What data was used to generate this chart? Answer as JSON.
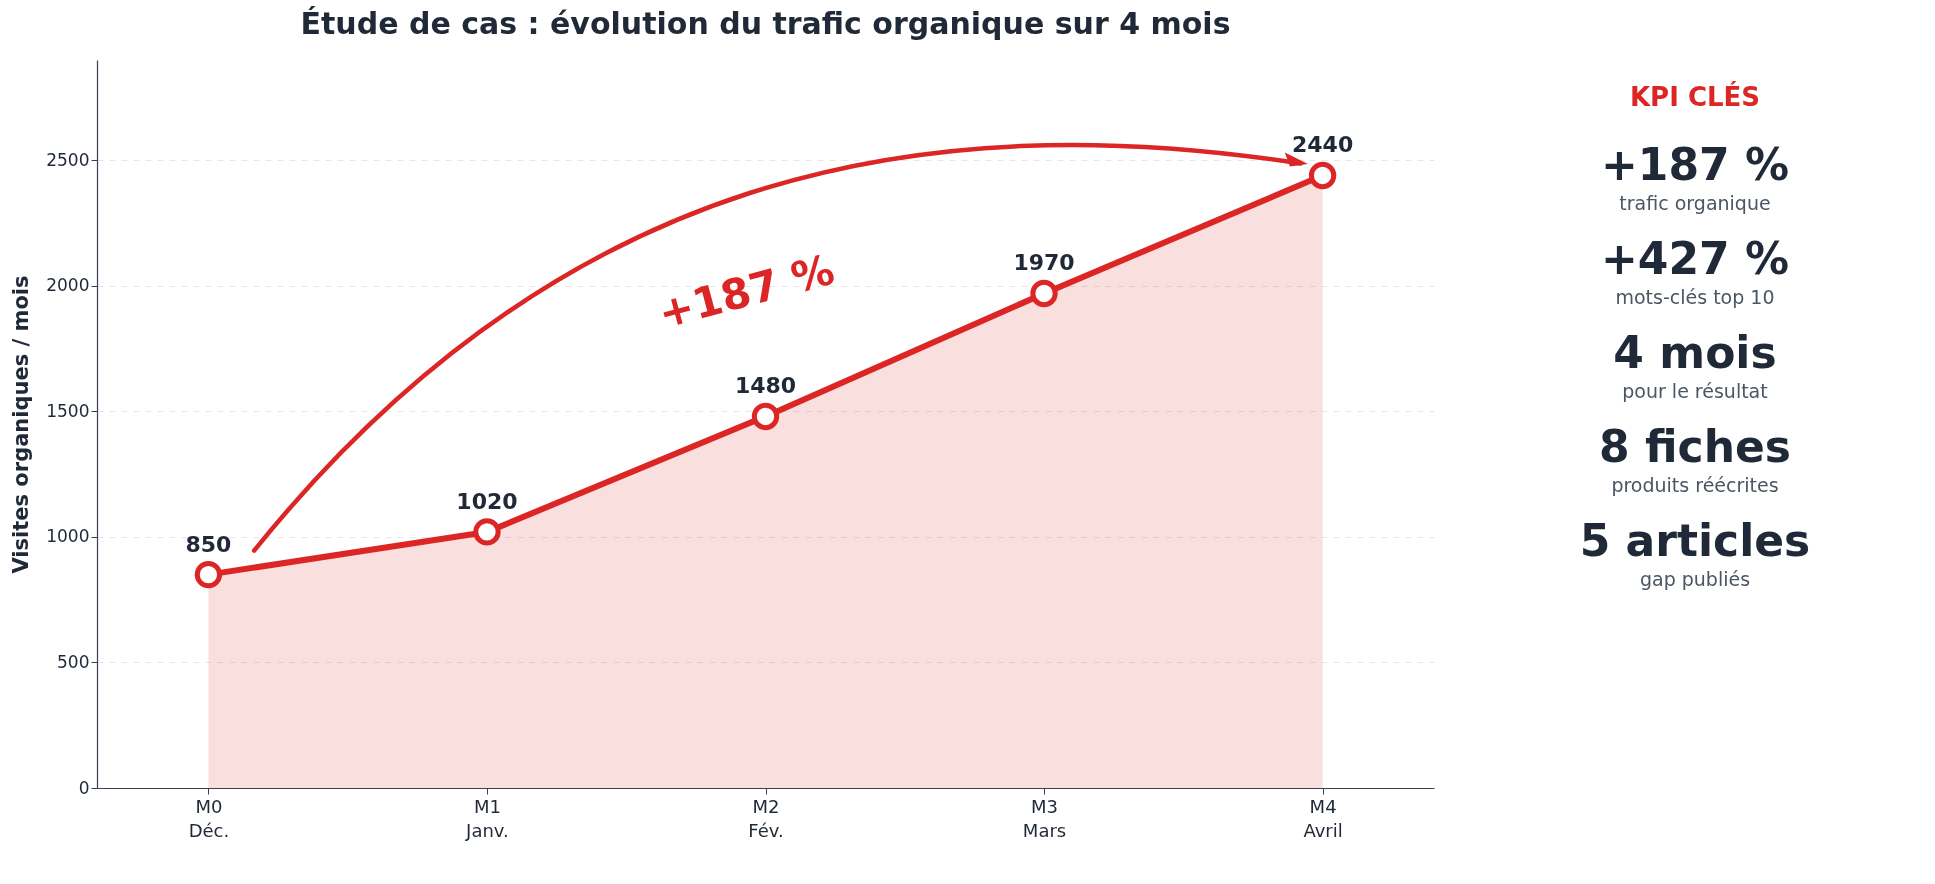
{
  "chart_data": [
    {
      "type": "area",
      "title": "Étude de cas : évolution du trafic organique sur 4 mois",
      "ylabel": "Visites organiques / mois",
      "categories": [
        "M0\nDéc.",
        "M1\nJanv.",
        "M2\nFév.",
        "M3\nMars",
        "M4\nAvril"
      ],
      "series": [
        {
          "color": "#dc2626",
          "values": [
            850,
            1020,
            1480,
            1970,
            2440
          ]
        }
      ],
      "ylim": [
        0,
        2900
      ],
      "yticks": [
        0,
        500,
        1000,
        1500,
        2000,
        2500
      ],
      "grid": "y",
      "marker": "circle",
      "data_labels": true,
      "annotations": [
        "+187 %"
      ]
    },
    {
      "type": "other",
      "title": "KPI CLÉS",
      "annotations": [
        "+187 %",
        "trafic organique",
        "+427 %",
        "mots-clés top 10",
        "4 mois",
        "pour le résultat",
        "8 fiches",
        "produits réécrites",
        "5 articles",
        "gap publiés"
      ]
    }
  ]
}
